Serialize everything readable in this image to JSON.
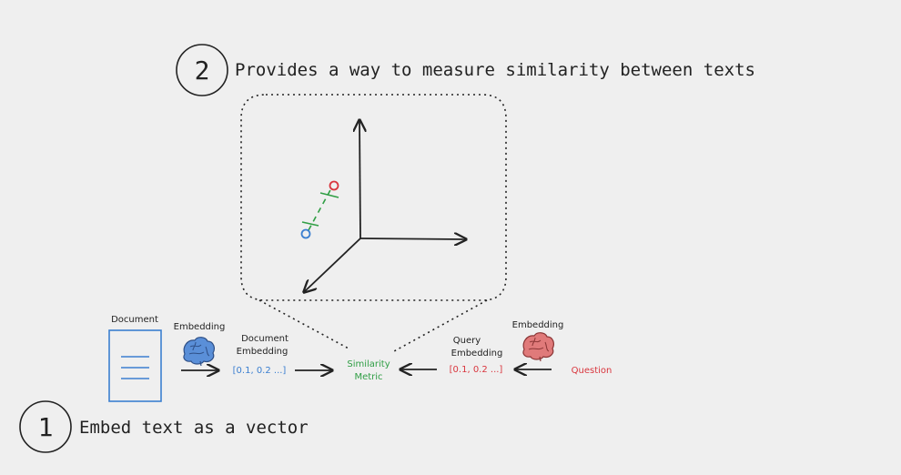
{
  "steps": [
    {
      "number": "2",
      "text": "Provides a way to measure similarity between texts"
    },
    {
      "number": "1",
      "text": "Embed text as a vector"
    }
  ],
  "document": {
    "label": "Document"
  },
  "document_embedding": {
    "title_line1": "Document",
    "title_line2": "Embedding",
    "vector": "[0.1, 0.2 ...]",
    "color": "#3b7fd0"
  },
  "embedding_left": {
    "label": "Embedding",
    "brain_color": "#5a8fd8"
  },
  "embedding_right": {
    "label": "Embedding",
    "brain_color": "#e07a7a"
  },
  "similarity": {
    "line1": "Similarity",
    "line2": "Metric",
    "color": "#2f9e44"
  },
  "query_embedding": {
    "title_line1": "Query",
    "title_line2": "Embedding",
    "vector": "[0.1, 0.2 ...]",
    "color": "#d9363e"
  },
  "question": {
    "label": "Question",
    "color": "#d9363e"
  },
  "plot": {
    "point_a_color": "#3b7fd0",
    "point_b_color": "#d9363e",
    "link_color": "#2f9e44"
  },
  "icons": [
    "brain-icon",
    "document-icon",
    "arrow-icon"
  ]
}
